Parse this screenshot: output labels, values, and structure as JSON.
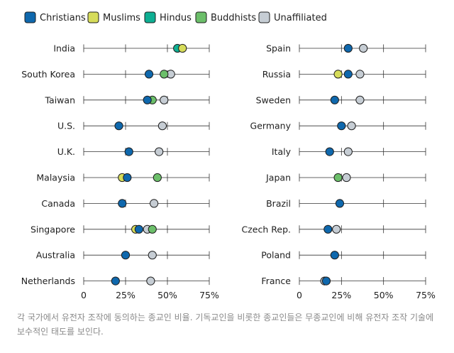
{
  "chart_data": {
    "type": "scatter",
    "title": "",
    "xlabel": "",
    "ylabel": "",
    "xlim": [
      0,
      75
    ],
    "x_ticks": [
      0,
      25,
      50,
      75
    ],
    "x_tick_labels": [
      "0",
      "25%",
      "50%",
      "75%"
    ],
    "legend_position": "top-left",
    "grid": false,
    "series": [
      {
        "name": "Christians",
        "color": "#0f68ad"
      },
      {
        "name": "Muslims",
        "color": "#d6dc5a"
      },
      {
        "name": "Hindus",
        "color": "#0eaf93"
      },
      {
        "name": "Buddhists",
        "color": "#6cbf6a"
      },
      {
        "name": "Unaffiliated",
        "color": "#c6cdd4"
      }
    ],
    "panels": [
      {
        "countries": [
          {
            "name": "India",
            "values": {
              "Christians": null,
              "Muslims": 59,
              "Hindus": 56,
              "Buddhists": null,
              "Unaffiliated": null
            }
          },
          {
            "name": "South Korea",
            "values": {
              "Christians": 39,
              "Muslims": null,
              "Hindus": null,
              "Buddhists": 48,
              "Unaffiliated": 52
            }
          },
          {
            "name": "Taiwan",
            "values": {
              "Christians": 38,
              "Muslims": null,
              "Hindus": null,
              "Buddhists": 41,
              "Unaffiliated": 48
            }
          },
          {
            "name": "U.S.",
            "values": {
              "Christians": 21,
              "Muslims": null,
              "Hindus": null,
              "Buddhists": null,
              "Unaffiliated": 47
            }
          },
          {
            "name": "U.K.",
            "values": {
              "Christians": 27,
              "Muslims": null,
              "Hindus": null,
              "Buddhists": null,
              "Unaffiliated": 45
            }
          },
          {
            "name": "Malaysia",
            "values": {
              "Christians": 26,
              "Muslims": 23,
              "Hindus": null,
              "Buddhists": 44,
              "Unaffiliated": null
            }
          },
          {
            "name": "Canada",
            "values": {
              "Christians": 23,
              "Muslims": null,
              "Hindus": null,
              "Buddhists": null,
              "Unaffiliated": 42
            }
          },
          {
            "name": "Singapore",
            "values": {
              "Christians": 33,
              "Muslims": 31,
              "Hindus": null,
              "Buddhists": 41,
              "Unaffiliated": 38
            }
          },
          {
            "name": "Australia",
            "values": {
              "Christians": 25,
              "Muslims": null,
              "Hindus": null,
              "Buddhists": null,
              "Unaffiliated": 41
            }
          },
          {
            "name": "Netherlands",
            "values": {
              "Christians": 19,
              "Muslims": null,
              "Hindus": null,
              "Buddhists": null,
              "Unaffiliated": 40
            }
          }
        ]
      },
      {
        "countries": [
          {
            "name": "Spain",
            "values": {
              "Christians": 29,
              "Muslims": null,
              "Hindus": null,
              "Buddhists": null,
              "Unaffiliated": 38
            }
          },
          {
            "name": "Russia",
            "values": {
              "Christians": 29,
              "Muslims": 23,
              "Hindus": null,
              "Buddhists": null,
              "Unaffiliated": 36
            }
          },
          {
            "name": "Sweden",
            "values": {
              "Christians": 21,
              "Muslims": null,
              "Hindus": null,
              "Buddhists": null,
              "Unaffiliated": 36
            }
          },
          {
            "name": "Germany",
            "values": {
              "Christians": 25,
              "Muslims": null,
              "Hindus": null,
              "Buddhists": null,
              "Unaffiliated": 31
            }
          },
          {
            "name": "Italy",
            "values": {
              "Christians": 18,
              "Muslims": null,
              "Hindus": null,
              "Buddhists": null,
              "Unaffiliated": 29
            }
          },
          {
            "name": "Japan",
            "values": {
              "Christians": null,
              "Muslims": null,
              "Hindus": null,
              "Buddhists": 23,
              "Unaffiliated": 28
            }
          },
          {
            "name": "Brazil",
            "values": {
              "Christians": 24,
              "Muslims": null,
              "Hindus": null,
              "Buddhists": null,
              "Unaffiliated": null
            }
          },
          {
            "name": "Czech Rep.",
            "values": {
              "Christians": 17,
              "Muslims": null,
              "Hindus": null,
              "Buddhists": null,
              "Unaffiliated": 22
            }
          },
          {
            "name": "Poland",
            "values": {
              "Christians": 21,
              "Muslims": null,
              "Hindus": null,
              "Buddhists": null,
              "Unaffiliated": null
            }
          },
          {
            "name": "France",
            "values": {
              "Christians": 16,
              "Muslims": null,
              "Hindus": null,
              "Buddhists": null,
              "Unaffiliated": 15
            }
          }
        ]
      }
    ]
  },
  "caption": "각 국가에서 유전자 조작에 동의하는 종교인 비율. 기독교인을 비롯한 종교인들은 무종교인에 비해 유전자 조작 기술에 보수적인 태도를 보인다."
}
